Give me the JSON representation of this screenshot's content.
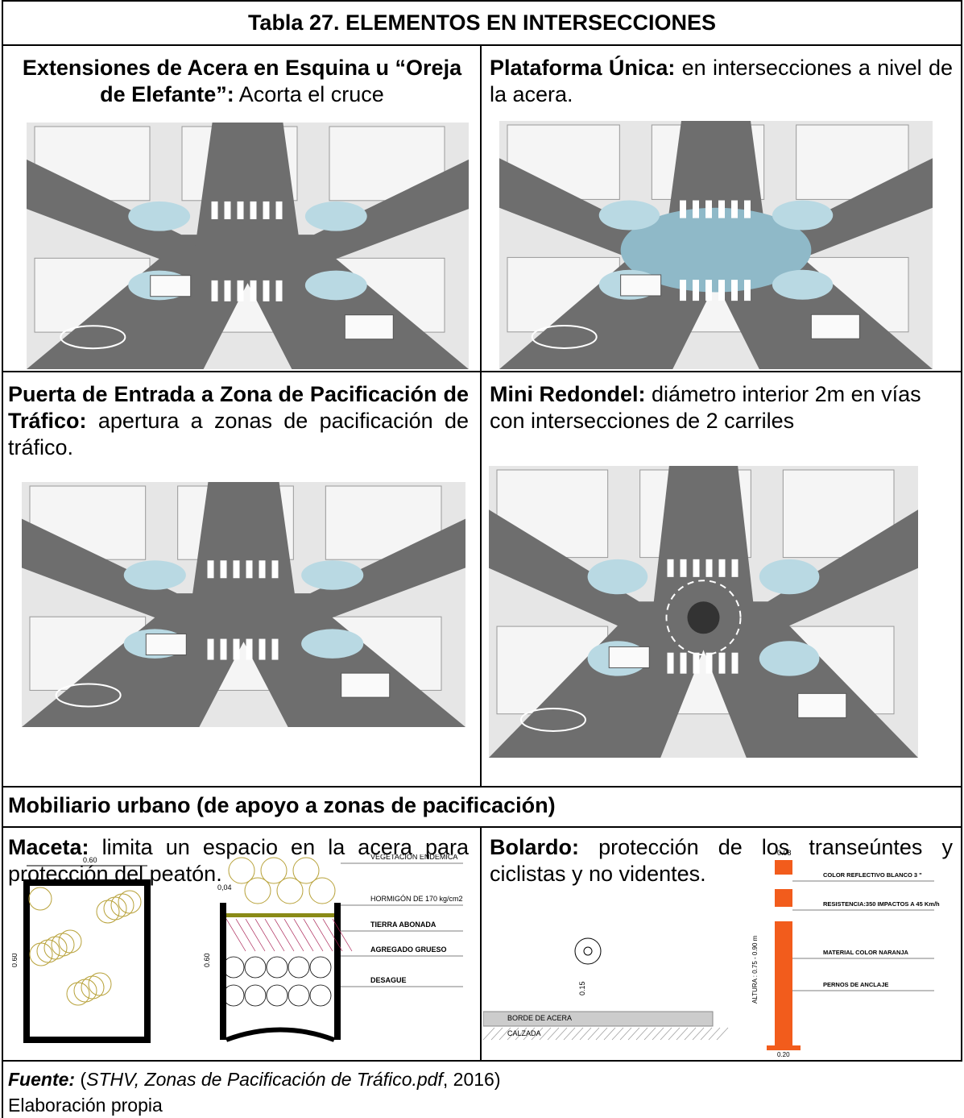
{
  "table": {
    "title": "Tabla 27.  ELEMENTOS EN INTERSECCIONES",
    "cells": [
      {
        "term": "Extensiones de Acera en Esquina u “Oreja de Elefante”:",
        "description": "Acorta el cruce"
      },
      {
        "term": "Plataforma Única:",
        "description": "en intersecciones a nivel de la acera."
      },
      {
        "term": "Puerta de Entrada a Zona de Pacificación de Tráfico:",
        "description": "apertura a zonas de pacificación de tráfico."
      },
      {
        "term": "Mini Redondel:",
        "description": "diámetro interior 2m en vías con intersecciones de 2 carriles"
      }
    ],
    "section": "Mobiliario urbano (de apoyo a zonas de pacificación)",
    "furniture": [
      {
        "term": "Maceta:",
        "description": "limita un espacio en la acera para protección del peatón.",
        "drawing_labels": [
          "0.60",
          "0.60",
          "0,04",
          "0.60",
          "VEGETACIÓN ENDÉMICA",
          "HORMIGÓN DE 170 kg/cm2",
          "TIERRA ABONADA",
          "AGREGADO GRUESO",
          "DESAGUE"
        ]
      },
      {
        "term": "Bolardo:",
        "description": "protección de los transeúntes y ciclistas y no videntes.",
        "drawing_labels": [
          "0.15",
          "BORDE DE ACERA",
          "CALZADA",
          "0.08",
          "COLOR REFLECTIVO BLANCO 3 \"",
          "RESISTENCIA:350 IMPACTOS A 45 Km/h",
          "MATERIAL  COLOR NARANJA",
          "PERNOS DE ANCLAJE",
          "ALTURA : 0.75 - 0.90 m",
          "0.20"
        ]
      }
    ]
  },
  "source": {
    "label": "Fuente:",
    "open": "(",
    "citation": "STHV, Zonas de Pacificación de Tráfico.pdf",
    "close": ", 2016)",
    "note": "Elaboración propia"
  }
}
